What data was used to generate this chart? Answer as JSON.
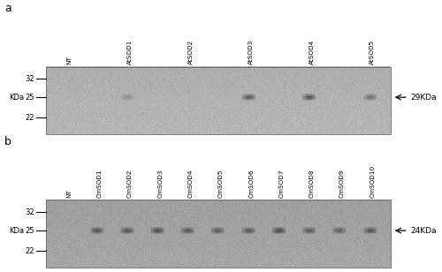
{
  "figure_bg": "#ffffff",
  "panel_a": {
    "label": "a",
    "lane_labels": [
      "NT",
      "AtSOD1",
      "AtSOD2",
      "AtSOD3",
      "AtSOD4",
      "AtSOD5"
    ],
    "mw_labels": [
      "32",
      "25",
      "22"
    ],
    "arrow_label": "29KDa",
    "blot_bg": 0.68,
    "bands": [
      {
        "intensity": 0.0
      },
      {
        "intensity": 0.3
      },
      {
        "intensity": 0.0
      },
      {
        "intensity": 0.82
      },
      {
        "intensity": 0.88
      },
      {
        "intensity": 0.6
      }
    ]
  },
  "panel_b": {
    "label": "b",
    "lane_labels": [
      "NT",
      "CmSOD1",
      "CmSOD2",
      "CmSOD3",
      "CmSOD4",
      "CmSOD5",
      "CmSOD6",
      "CmSOD7",
      "CmSOD8",
      "CmSOD9",
      "CmSOD10"
    ],
    "mw_labels": [
      "32",
      "25",
      "22"
    ],
    "arrow_label": "24KDa",
    "blot_bg": 0.62,
    "bands": [
      {
        "intensity": 0.0
      },
      {
        "intensity": 0.75
      },
      {
        "intensity": 0.75
      },
      {
        "intensity": 0.85
      },
      {
        "intensity": 0.7
      },
      {
        "intensity": 0.65
      },
      {
        "intensity": 0.72
      },
      {
        "intensity": 0.88
      },
      {
        "intensity": 0.7
      },
      {
        "intensity": 0.65
      },
      {
        "intensity": 0.75
      }
    ]
  }
}
